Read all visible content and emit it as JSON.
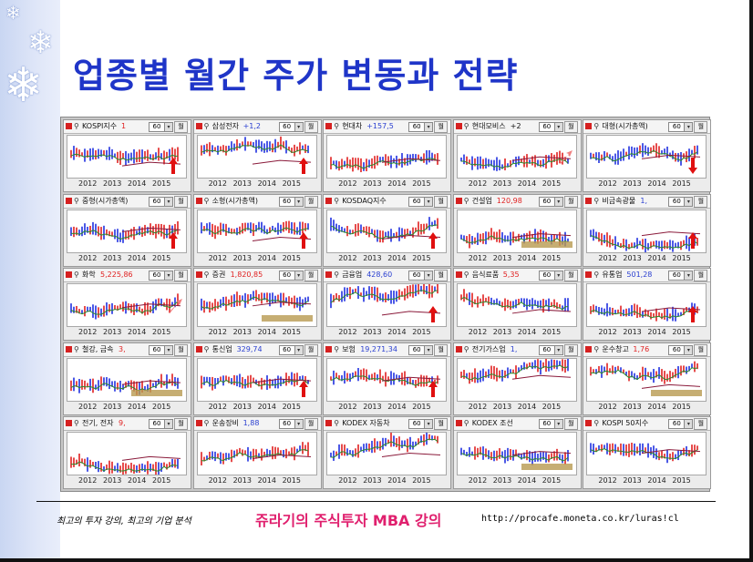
{
  "title": "업종별 월간 주가 변동과 전략",
  "footer": {
    "tagline": "최고의 투자 강의, 최고의 기업 분석",
    "course": "쥬라기의 주식투자 MBA 강의",
    "url": "http://procafe.moneta.co.kr/luras!cl"
  },
  "panel_common": {
    "period": "60",
    "period_unit": "월",
    "dropdown": "▾",
    "years": [
      "2012",
      "2013",
      "2014",
      "2015"
    ]
  },
  "colors": {
    "title": "#1f35c8",
    "footer_course": "#e0206e",
    "candle_up": "#e02020",
    "candle_down": "#2030e0",
    "ma_short": "#2b8a2b",
    "ma_long": "#8a1a3a",
    "arrow": "#e01010",
    "band": "#b89a50"
  },
  "panels": [
    {
      "name": "KOSPI지수",
      "value": "1",
      "value_color": "#e02020",
      "marker": "up-arrow"
    },
    {
      "name": "삼성전자",
      "value": "+1,2",
      "value_color": "#2a3fd0",
      "marker": "up-arrow"
    },
    {
      "name": "현대차",
      "value": "+157,5",
      "value_color": "#2a3fd0",
      "marker": "none"
    },
    {
      "name": "현대모비스",
      "value": "+2",
      "value_color": "#111111",
      "marker": "diag-arrow"
    },
    {
      "name": "대형(시가총액)",
      "value": "",
      "value_color": "#111111",
      "marker": "down-arrow"
    },
    {
      "name": "중형(시가총액)",
      "value": "",
      "value_color": "#111111",
      "marker": "up-arrow"
    },
    {
      "name": "소형(시가총액)",
      "value": "",
      "value_color": "#111111",
      "marker": "up-arrow"
    },
    {
      "name": "KOSDAQ지수",
      "value": "",
      "value_color": "#111111",
      "marker": "up-arrow"
    },
    {
      "name": "건설업",
      "value": "120,98",
      "value_color": "#e02020",
      "marker": "band"
    },
    {
      "name": "비금속광물",
      "value": "1,",
      "value_color": "#2a3fd0",
      "marker": "up-arrow"
    },
    {
      "name": "화학",
      "value": "5,225,86",
      "value_color": "#e02020",
      "marker": "diag-arrow"
    },
    {
      "name": "증권",
      "value": "1,820,85",
      "value_color": "#e02020",
      "marker": "band"
    },
    {
      "name": "금융업",
      "value": "428,60",
      "value_color": "#2a3fd0",
      "marker": "up-arrow"
    },
    {
      "name": "음식료품",
      "value": "5,35",
      "value_color": "#e02020",
      "marker": "none"
    },
    {
      "name": "유통업",
      "value": "501,28",
      "value_color": "#2a3fd0",
      "marker": "up-arrow"
    },
    {
      "name": "철강, 금속",
      "value": "3,",
      "value_color": "#e02020",
      "marker": "band"
    },
    {
      "name": "통신업",
      "value": "329,74",
      "value_color": "#2a3fd0",
      "marker": "up-arrow"
    },
    {
      "name": "보험",
      "value": "19,271,34",
      "value_color": "#2a3fd0",
      "marker": "up-arrow"
    },
    {
      "name": "전기가스업",
      "value": "1,",
      "value_color": "#2a3fd0",
      "marker": "none"
    },
    {
      "name": "운수창고",
      "value": "1,76",
      "value_color": "#e02020",
      "marker": "band"
    },
    {
      "name": "전기, 전자",
      "value": "9,",
      "value_color": "#e02020",
      "marker": "none"
    },
    {
      "name": "운송장비",
      "value": "1,88",
      "value_color": "#2a3fd0",
      "marker": "none"
    },
    {
      "name": "KODEX 자동차",
      "value": "",
      "value_color": "#111111",
      "marker": "none"
    },
    {
      "name": "KODEX 조선",
      "value": "",
      "value_color": "#111111",
      "marker": "band"
    },
    {
      "name": "KOSPI 50지수",
      "value": "",
      "value_color": "#111111",
      "marker": "none"
    }
  ]
}
